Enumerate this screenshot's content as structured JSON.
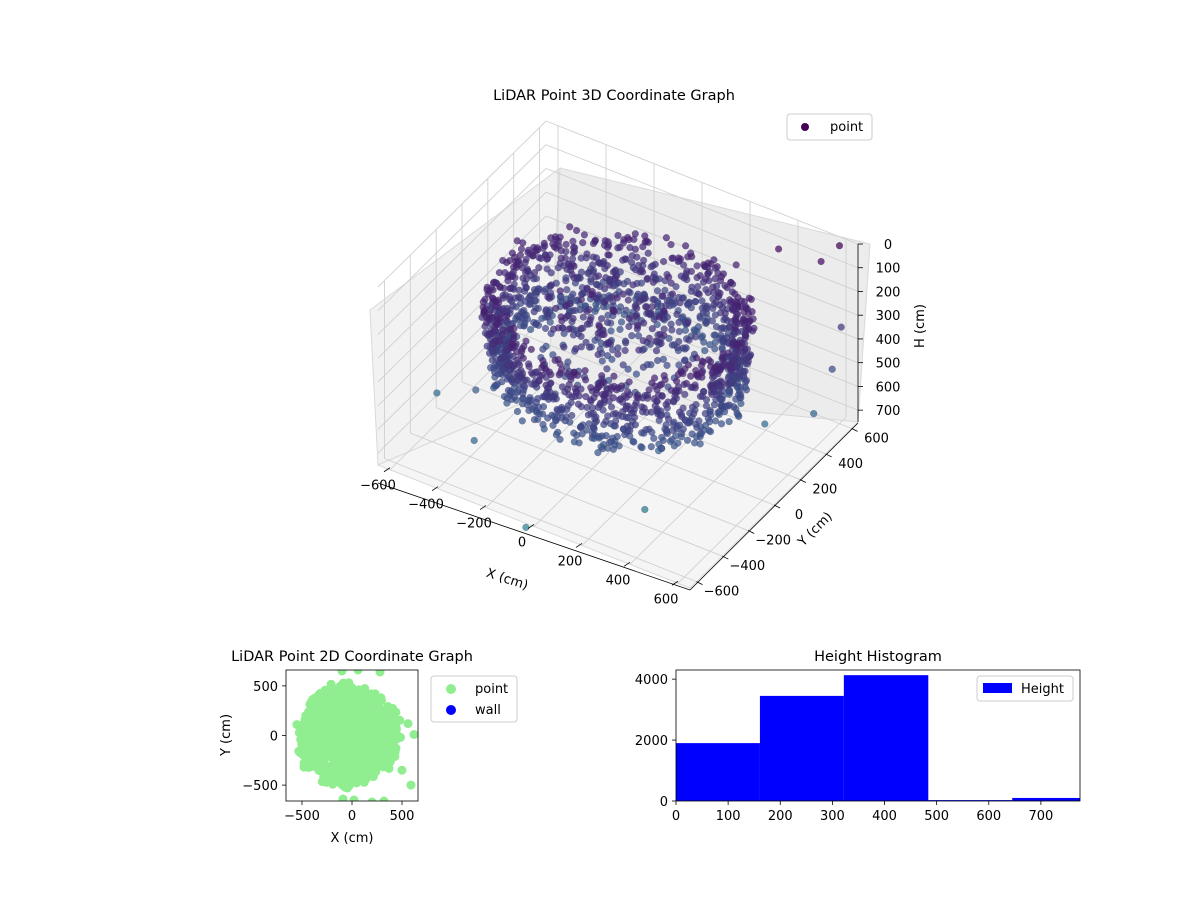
{
  "chart_data": [
    {
      "type": "scatter",
      "projection": "3d",
      "title": "LiDAR Point 3D Coordinate Graph",
      "xlabel": "X (cm)",
      "ylabel": "Y (cm)",
      "zlabel": "H (cm)",
      "x_ticks": [
        "−600",
        "−400",
        "−200",
        "0",
        "200",
        "400",
        "600"
      ],
      "y_ticks": [
        "−600",
        "−400",
        "−200",
        "0",
        "200",
        "400",
        "600"
      ],
      "z_ticks": [
        "0",
        "100",
        "200",
        "300",
        "400",
        "500",
        "600",
        "700"
      ],
      "xlim": [
        -650,
        650
      ],
      "ylim": [
        -650,
        650
      ],
      "zlim": [
        0,
        750
      ],
      "z_inverted": true,
      "colormap": "viridis",
      "legend": {
        "entries": [
          "point"
        ],
        "position": "upper-right"
      },
      "legend_color": "#440154",
      "grid": true,
      "series": [
        {
          "name": "point",
          "shape": "dense ring of points, radius ~500 cm at heights ~150–480 cm, plus scattered outliers"
        }
      ]
    },
    {
      "type": "scatter",
      "title": "LiDAR Point 2D Coordinate Graph",
      "xlabel": "X (cm)",
      "ylabel": "Y (cm)",
      "x_ticks": [
        "−500",
        "0",
        "500"
      ],
      "y_ticks": [
        "−500",
        "0",
        "500"
      ],
      "xlim": [
        -660,
        660
      ],
      "ylim": [
        -660,
        660
      ],
      "legend": {
        "entries": [
          "point",
          "wall"
        ],
        "position": "outside-right"
      },
      "series": [
        {
          "name": "point",
          "color": "#90ee90"
        },
        {
          "name": "wall",
          "color": "#0000ff"
        }
      ]
    },
    {
      "type": "bar",
      "subtype": "histogram",
      "title": "Height Histogram",
      "x_ticks": [
        "0",
        "100",
        "200",
        "300",
        "400",
        "500",
        "600",
        "700"
      ],
      "y_ticks": [
        "0",
        "2000",
        "4000"
      ],
      "xlim": [
        0,
        775
      ],
      "ylim": [
        0,
        4300
      ],
      "bin_edges": [
        0,
        161,
        322,
        484,
        645,
        775
      ],
      "values": [
        1900,
        3450,
        4130,
        30,
        100
      ],
      "color": "#0000ff",
      "legend": {
        "entries": [
          "Height"
        ],
        "position": "upper-right"
      }
    }
  ]
}
